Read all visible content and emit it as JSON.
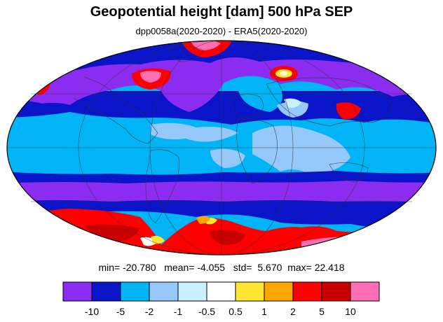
{
  "title": "Geopotential height [dam] 500 hPa SEP",
  "subtitle": "dpp0058a(2020-2020) - ERA5(2020-2020)",
  "stats": {
    "min_label": "min=",
    "min": "-20.780",
    "mean_label": "mean=",
    "mean": "-4.055",
    "std_label": "std=",
    "std": "5.670",
    "max_label": "max=",
    "max": "22.418"
  },
  "colorbar": {
    "levels": [
      "-10",
      "-5",
      "-2",
      "-1",
      "-0.5",
      "0.5",
      "1",
      "2",
      "5",
      "10"
    ],
    "colors": [
      "#8c2cf0",
      "#0a14c8",
      "#00b4f5",
      "#96c8fa",
      "#c8f0ff",
      "#ffffff",
      "#ffe632",
      "#ffa500",
      "#ff0000",
      "#c80000",
      "#ff6eb4"
    ]
  },
  "map": {
    "projection": "Mollweide",
    "ocean_color": "#00b4f5"
  }
}
